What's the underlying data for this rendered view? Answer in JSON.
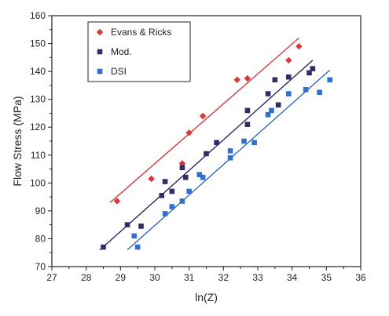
{
  "chart_data": {
    "type": "scatter",
    "xlabel": "ln(Z)",
    "ylabel": "Flow Stress (MPa)",
    "xlim": [
      27,
      36
    ],
    "ylim": [
      70,
      160
    ],
    "xticks": [
      27,
      28,
      29,
      30,
      31,
      32,
      33,
      34,
      35,
      36
    ],
    "yticks": [
      70,
      80,
      90,
      100,
      110,
      120,
      130,
      140,
      150,
      160
    ],
    "grid": false,
    "legend_position": "top-left",
    "series": [
      {
        "name": "Evans & Ricks",
        "marker": "diamond",
        "marker_color": "#e0343a",
        "line_color": "#e8262b",
        "points": [
          [
            28.9,
            93.5
          ],
          [
            29.9,
            101.5
          ],
          [
            30.8,
            107
          ],
          [
            31.0,
            118
          ],
          [
            31.4,
            124
          ],
          [
            32.4,
            137
          ],
          [
            32.7,
            137.5
          ],
          [
            33.9,
            144
          ],
          [
            34.2,
            149
          ]
        ],
        "fit": [
          [
            28.7,
            93
          ],
          [
            34.2,
            152
          ]
        ]
      },
      {
        "name": "Mod.",
        "marker": "square",
        "marker_color": "#2e2e66",
        "line_color": "#1a1a5e",
        "points": [
          [
            28.5,
            77
          ],
          [
            29.2,
            85
          ],
          [
            29.6,
            84.5
          ],
          [
            30.2,
            95.5
          ],
          [
            30.3,
            100.5
          ],
          [
            30.5,
            97
          ],
          [
            30.8,
            105.5
          ],
          [
            30.9,
            102
          ],
          [
            31.5,
            110.5
          ],
          [
            31.8,
            114.5
          ],
          [
            32.7,
            126
          ],
          [
            32.7,
            121
          ],
          [
            33.3,
            132
          ],
          [
            33.5,
            137
          ],
          [
            33.6,
            128
          ],
          [
            33.9,
            138
          ],
          [
            34.5,
            139.5
          ],
          [
            34.6,
            141
          ]
        ],
        "fit": [
          [
            28.4,
            76
          ],
          [
            34.6,
            144
          ]
        ]
      },
      {
        "name": "DSI",
        "marker": "square",
        "marker_color": "#2f6fcf",
        "line_color": "#2060c8",
        "points": [
          [
            29.4,
            81
          ],
          [
            29.5,
            77
          ],
          [
            30.3,
            89
          ],
          [
            30.5,
            91.5
          ],
          [
            30.8,
            93.5
          ],
          [
            31.0,
            97
          ],
          [
            31.3,
            103
          ],
          [
            31.4,
            102
          ],
          [
            32.2,
            109
          ],
          [
            32.2,
            111.5
          ],
          [
            32.6,
            115
          ],
          [
            32.9,
            114.5
          ],
          [
            33.3,
            124.5
          ],
          [
            33.4,
            126
          ],
          [
            33.9,
            132
          ],
          [
            34.4,
            133.5
          ],
          [
            34.8,
            132.5
          ],
          [
            35.1,
            137
          ]
        ],
        "fit": [
          [
            29.2,
            76
          ],
          [
            35.1,
            140.5
          ]
        ]
      }
    ]
  }
}
